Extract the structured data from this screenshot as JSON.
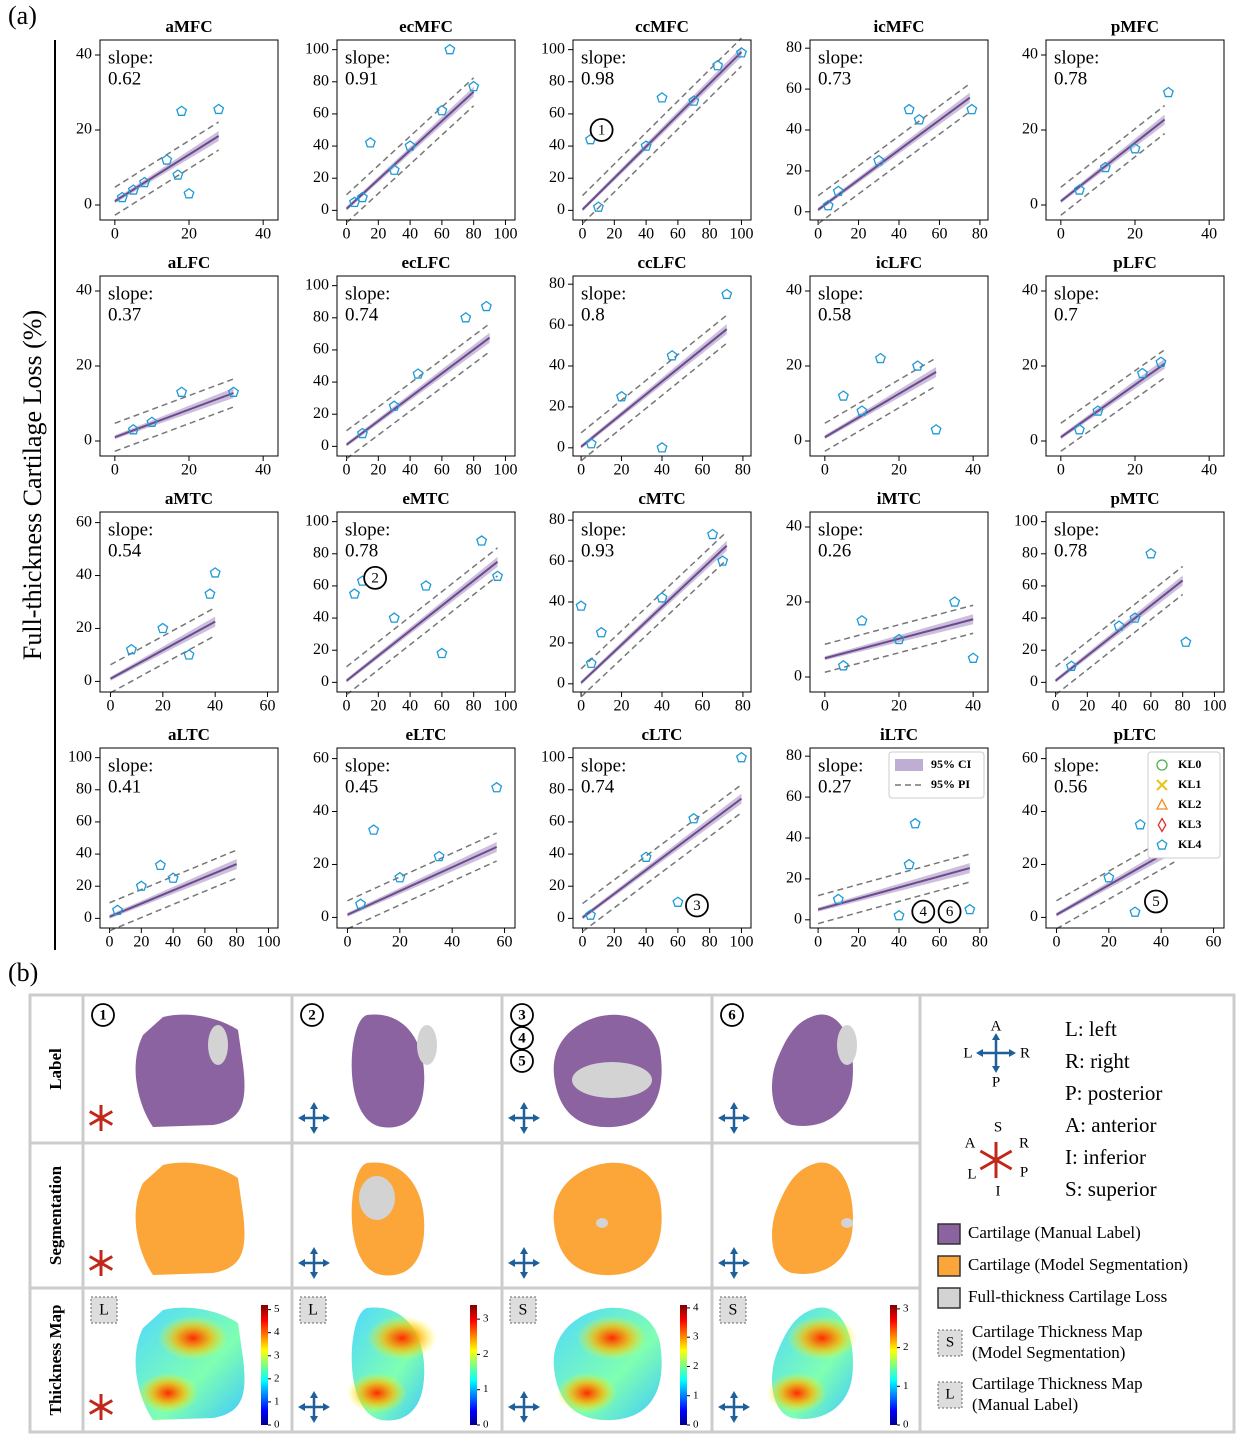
{
  "panel_labels": {
    "a": "(a)",
    "b": "(b)"
  },
  "y_label": "Full-thickness Cartilage Loss (%)",
  "slope_label": "slope:",
  "chart_data": [
    {
      "type": "scatter",
      "title": "aMFC",
      "slope": 0.62,
      "xlim": [
        -4,
        44
      ],
      "ylim": [
        -4,
        44
      ],
      "xticks": [
        0,
        20,
        40
      ],
      "yticks": [
        0,
        20,
        40
      ],
      "fit": {
        "x": [
          0,
          28
        ],
        "y": [
          1,
          18.4
        ]
      },
      "points": {
        "x": [
          2,
          5,
          8,
          18,
          28,
          14,
          17,
          20
        ],
        "y": [
          2,
          4,
          6,
          25,
          25.5,
          12,
          8,
          3
        ]
      }
    },
    {
      "type": "scatter",
      "title": "ecMFC",
      "slope": 0.91,
      "xlim": [
        -6,
        106
      ],
      "ylim": [
        -6,
        106
      ],
      "xticks": [
        0,
        20,
        40,
        60,
        80,
        100
      ],
      "yticks": [
        0,
        20,
        40,
        60,
        80,
        100
      ],
      "fit": {
        "x": [
          0,
          80
        ],
        "y": [
          1,
          73.8
        ]
      },
      "points": {
        "x": [
          65,
          80,
          15,
          40,
          60,
          5,
          10,
          30
        ],
        "y": [
          100,
          77,
          42,
          40,
          62,
          5,
          8,
          25
        ]
      }
    },
    {
      "type": "scatter",
      "title": "ccMFC",
      "slope": 0.98,
      "xlim": [
        -6,
        106
      ],
      "ylim": [
        -6,
        106
      ],
      "xticks": [
        0,
        20,
        40,
        60,
        80,
        100
      ],
      "yticks": [
        0,
        20,
        40,
        60,
        80,
        100
      ],
      "fit": {
        "x": [
          0,
          100
        ],
        "y": [
          0.5,
          98.5
        ]
      },
      "points": {
        "x": [
          5,
          50,
          85,
          70,
          10,
          100,
          40
        ],
        "y": [
          44,
          70,
          90,
          68,
          2,
          98,
          40
        ]
      },
      "annotations": [
        {
          "text": "1",
          "x": 12,
          "y": 50
        }
      ]
    },
    {
      "type": "scatter",
      "title": "icMFC",
      "slope": 0.73,
      "xlim": [
        -4,
        84
      ],
      "ylim": [
        -4,
        84
      ],
      "xticks": [
        0,
        20,
        40,
        60,
        80
      ],
      "yticks": [
        0,
        20,
        40,
        60,
        80
      ],
      "fit": {
        "x": [
          0,
          75
        ],
        "y": [
          1,
          55.8
        ]
      },
      "points": {
        "x": [
          45,
          50,
          76,
          10,
          30,
          5
        ],
        "y": [
          50,
          45,
          50,
          10,
          25,
          3
        ]
      }
    },
    {
      "type": "scatter",
      "title": "pMFC",
      "slope": 0.78,
      "xlim": [
        -4,
        44
      ],
      "ylim": [
        -4,
        44
      ],
      "xticks": [
        0,
        20,
        40
      ],
      "yticks": [
        0,
        20,
        40
      ],
      "fit": {
        "x": [
          0,
          28
        ],
        "y": [
          1,
          22.8
        ]
      },
      "points": {
        "x": [
          29,
          5,
          12,
          20
        ],
        "y": [
          30,
          4,
          10,
          15
        ]
      }
    },
    {
      "type": "scatter",
      "title": "aLFC",
      "slope": 0.37,
      "xlim": [
        -4,
        44
      ],
      "ylim": [
        -4,
        44
      ],
      "xticks": [
        0,
        20,
        40
      ],
      "yticks": [
        0,
        20,
        40
      ],
      "fit": {
        "x": [
          0,
          32
        ],
        "y": [
          1,
          12.8
        ]
      },
      "points": {
        "x": [
          32,
          5,
          10,
          18
        ],
        "y": [
          13,
          3,
          5,
          13
        ]
      }
    },
    {
      "type": "scatter",
      "title": "ecLFC",
      "slope": 0.74,
      "xlim": [
        -6,
        106
      ],
      "ylim": [
        -6,
        106
      ],
      "xticks": [
        0,
        20,
        40,
        60,
        80,
        100
      ],
      "yticks": [
        0,
        20,
        40,
        60,
        80,
        100
      ],
      "fit": {
        "x": [
          0,
          90
        ],
        "y": [
          1,
          67.6
        ]
      },
      "points": {
        "x": [
          75,
          88,
          45,
          10,
          30
        ],
        "y": [
          80,
          87,
          45,
          8,
          25
        ]
      }
    },
    {
      "type": "scatter",
      "title": "ccLFC",
      "slope": 0.8,
      "xlim": [
        -4,
        84
      ],
      "ylim": [
        -4,
        84
      ],
      "xticks": [
        0,
        20,
        40,
        60,
        80
      ],
      "yticks": [
        0,
        20,
        40,
        60,
        80
      ],
      "fit": {
        "x": [
          0,
          72
        ],
        "y": [
          0.5,
          58
        ]
      },
      "points": {
        "x": [
          72,
          40,
          20,
          45,
          5
        ],
        "y": [
          75,
          0,
          25,
          45,
          2
        ]
      }
    },
    {
      "type": "scatter",
      "title": "icLFC",
      "slope": 0.58,
      "xlim": [
        -4,
        44
      ],
      "ylim": [
        -4,
        44
      ],
      "xticks": [
        0,
        20,
        40
      ],
      "yticks": [
        0,
        20,
        40
      ],
      "fit": {
        "x": [
          0,
          30
        ],
        "y": [
          1,
          18.4
        ]
      },
      "points": {
        "x": [
          30,
          25,
          15,
          5,
          10
        ],
        "y": [
          3,
          20,
          22,
          12,
          8
        ]
      }
    },
    {
      "type": "scatter",
      "title": "pLFC",
      "slope": 0.7,
      "xlim": [
        -4,
        44
      ],
      "ylim": [
        -4,
        44
      ],
      "xticks": [
        0,
        20,
        40
      ],
      "yticks": [
        0,
        20,
        40
      ],
      "fit": {
        "x": [
          0,
          28
        ],
        "y": [
          1,
          20.6
        ]
      },
      "points": {
        "x": [
          27,
          22,
          10,
          5
        ],
        "y": [
          21,
          18,
          8,
          3
        ]
      }
    },
    {
      "type": "scatter",
      "title": "aMTC",
      "slope": 0.54,
      "xlim": [
        -4,
        64
      ],
      "ylim": [
        -4,
        64
      ],
      "xticks": [
        0,
        20,
        40,
        60
      ],
      "yticks": [
        0,
        20,
        40,
        60
      ],
      "fit": {
        "x": [
          0,
          40
        ],
        "y": [
          1,
          22.6
        ]
      },
      "points": {
        "x": [
          40,
          38,
          20,
          8,
          30
        ],
        "y": [
          41,
          33,
          20,
          12,
          10
        ]
      }
    },
    {
      "type": "scatter",
      "title": "eMTC",
      "slope": 0.78,
      "xlim": [
        -6,
        106
      ],
      "ylim": [
        -6,
        106
      ],
      "xticks": [
        0,
        20,
        40,
        60,
        80,
        100
      ],
      "yticks": [
        0,
        20,
        40,
        60,
        80,
        100
      ],
      "fit": {
        "x": [
          0,
          95
        ],
        "y": [
          1,
          75
        ]
      },
      "points": {
        "x": [
          5,
          10,
          85,
          95,
          60,
          50,
          30
        ],
        "y": [
          55,
          63,
          88,
          66,
          18,
          60,
          40
        ]
      },
      "annotations": [
        {
          "text": "2",
          "x": 18,
          "y": 65
        }
      ]
    },
    {
      "type": "scatter",
      "title": "cMTC",
      "slope": 0.93,
      "xlim": [
        -4,
        84
      ],
      "ylim": [
        -4,
        84
      ],
      "xticks": [
        0,
        20,
        40,
        60,
        80
      ],
      "yticks": [
        0,
        20,
        40,
        60,
        80
      ],
      "fit": {
        "x": [
          0,
          72
        ],
        "y": [
          0.5,
          67.5
        ]
      },
      "points": {
        "x": [
          0,
          65,
          70,
          40,
          10,
          5
        ],
        "y": [
          38,
          73,
          60,
          42,
          25,
          10
        ]
      }
    },
    {
      "type": "scatter",
      "title": "iMTC",
      "slope": 0.26,
      "xlim": [
        -4,
        44
      ],
      "ylim": [
        -4,
        44
      ],
      "xticks": [
        0,
        20,
        40
      ],
      "yticks": [
        0,
        20,
        40
      ],
      "fit": {
        "x": [
          0,
          40
        ],
        "y": [
          5,
          15.4
        ]
      },
      "points": {
        "x": [
          40,
          35,
          10,
          20,
          5
        ],
        "y": [
          5,
          20,
          15,
          10,
          3
        ]
      }
    },
    {
      "type": "scatter",
      "title": "pMTC",
      "slope": 0.78,
      "xlim": [
        -6,
        106
      ],
      "ylim": [
        -6,
        106
      ],
      "xticks": [
        0,
        20,
        40,
        60,
        80,
        100
      ],
      "yticks": [
        0,
        20,
        40,
        60,
        80,
        100
      ],
      "fit": {
        "x": [
          0,
          80
        ],
        "y": [
          1,
          63.4
        ]
      },
      "points": {
        "x": [
          60,
          82,
          50,
          40,
          10
        ],
        "y": [
          80,
          25,
          40,
          35,
          10
        ]
      }
    },
    {
      "type": "scatter",
      "title": "aLTC",
      "slope": 0.41,
      "xlim": [
        -6,
        106
      ],
      "ylim": [
        -6,
        106
      ],
      "xticks": [
        0,
        20,
        40,
        60,
        80,
        100
      ],
      "yticks": [
        0,
        20,
        40,
        60,
        80,
        100
      ],
      "fit": {
        "x": [
          0,
          80
        ],
        "y": [
          1,
          33.8
        ]
      },
      "points": {
        "x": [
          32,
          40,
          20,
          5
        ],
        "y": [
          33,
          25,
          20,
          5
        ]
      }
    },
    {
      "type": "scatter",
      "title": "eLTC",
      "slope": 0.45,
      "xlim": [
        -4,
        64
      ],
      "ylim": [
        -4,
        64
      ],
      "xticks": [
        0,
        20,
        40,
        60
      ],
      "yticks": [
        0,
        20,
        40,
        60
      ],
      "fit": {
        "x": [
          0,
          57
        ],
        "y": [
          1,
          26.6
        ]
      },
      "points": {
        "x": [
          57,
          10,
          35,
          20,
          5
        ],
        "y": [
          49,
          33,
          23,
          15,
          5
        ]
      }
    },
    {
      "type": "scatter",
      "title": "cLTC",
      "slope": 0.74,
      "xlim": [
        -6,
        106
      ],
      "ylim": [
        -6,
        106
      ],
      "xticks": [
        0,
        20,
        40,
        60,
        80,
        100
      ],
      "yticks": [
        0,
        20,
        40,
        60,
        80,
        100
      ],
      "fit": {
        "x": [
          0,
          100
        ],
        "y": [
          0.5,
          74.5
        ]
      },
      "points": {
        "x": [
          100,
          70,
          60,
          40,
          5
        ],
        "y": [
          100,
          62,
          10,
          38,
          2
        ]
      },
      "annotations": [
        {
          "text": "3",
          "x": 72,
          "y": 8
        }
      ]
    },
    {
      "type": "scatter",
      "title": "iLTC",
      "slope": 0.27,
      "xlim": [
        -4,
        84
      ],
      "ylim": [
        -4,
        84
      ],
      "xticks": [
        0,
        20,
        40,
        60,
        80
      ],
      "yticks": [
        0,
        20,
        40,
        60,
        80
      ],
      "fit": {
        "x": [
          0,
          75
        ],
        "y": [
          5,
          25.3
        ]
      },
      "points": {
        "x": [
          48,
          45,
          40,
          75,
          10
        ],
        "y": [
          47,
          27,
          2,
          5,
          10
        ]
      },
      "annotations": [
        {
          "text": "4",
          "x": 52,
          "y": 4
        },
        {
          "text": "6",
          "x": 65,
          "y": 4
        }
      ],
      "legend": {
        "corner": "upper right",
        "entries": [
          "95% CI",
          "95% PI"
        ]
      }
    },
    {
      "type": "scatter",
      "title": "pLTC",
      "slope": 0.56,
      "xlim": [
        -4,
        64
      ],
      "ylim": [
        -4,
        64
      ],
      "xticks": [
        0,
        20,
        40,
        60
      ],
      "yticks": [
        0,
        20,
        40,
        60
      ],
      "fit": {
        "x": [
          0,
          45
        ],
        "y": [
          1,
          26.2
        ]
      },
      "points": {
        "x": [
          40,
          32,
          30,
          20
        ],
        "y": [
          40,
          35,
          2,
          15
        ]
      },
      "annotations": [
        {
          "text": "5",
          "x": 38,
          "y": 6
        }
      ],
      "legend": {
        "corner": "upper right",
        "entries": [
          {
            "name": "KL0",
            "color": "#4caf50",
            "marker": "circle"
          },
          {
            "name": "KL1",
            "color": "#e8c420",
            "marker": "x"
          },
          {
            "name": "KL2",
            "color": "#f08a1c",
            "marker": "triangle"
          },
          {
            "name": "KL3",
            "color": "#e03030",
            "marker": "diamond"
          },
          {
            "name": "KL4",
            "color": "#1e9ad6",
            "marker": "pentagon"
          }
        ]
      }
    }
  ],
  "panel_b": {
    "rows": [
      "Label",
      "Segmentation",
      "Thickness Map"
    ],
    "columns": [
      {
        "markers": [
          "1"
        ],
        "badge": "L",
        "colorbar_lim": [
          0,
          5.2
        ],
        "colorbar_ticks": [
          0,
          1,
          2,
          3,
          4,
          5
        ]
      },
      {
        "markers": [
          "2"
        ],
        "badge": "L",
        "colorbar_lim": [
          0,
          3.4
        ],
        "colorbar_ticks": [
          0,
          1,
          2,
          3
        ]
      },
      {
        "markers": [
          "3",
          "4",
          "5"
        ],
        "badge": "S",
        "colorbar_lim": [
          0,
          4.1
        ],
        "colorbar_ticks": [
          0,
          1,
          2,
          3,
          4
        ]
      },
      {
        "markers": [
          "6"
        ],
        "badge": "S",
        "colorbar_lim": [
          0,
          3.1
        ],
        "colorbar_ticks": [
          0,
          1,
          2,
          3
        ]
      }
    ],
    "axial": [
      "A",
      "L",
      "R",
      "P"
    ],
    "sagittal": [
      "S",
      "A",
      "R",
      "L",
      "P",
      "I"
    ],
    "key": [
      "L: left",
      "R: right",
      "P: posterior",
      "A: anterior",
      "I: inferior",
      "S: superior"
    ],
    "legend": [
      {
        "label": "Cartilage (Manual Label)",
        "color": "#8b63a0"
      },
      {
        "label": "Cartilage (Model Segmentation)",
        "color": "#fca63a"
      },
      {
        "label": "Full-thickness Cartilage Loss",
        "color": "#d3d3d3"
      },
      {
        "badge": "S",
        "label": [
          "Cartilage Thickness Map",
          "(Model Segmentation)"
        ]
      },
      {
        "badge": "L",
        "label": [
          "Cartilage Thickness Map",
          "(Manual Label)"
        ]
      }
    ]
  }
}
